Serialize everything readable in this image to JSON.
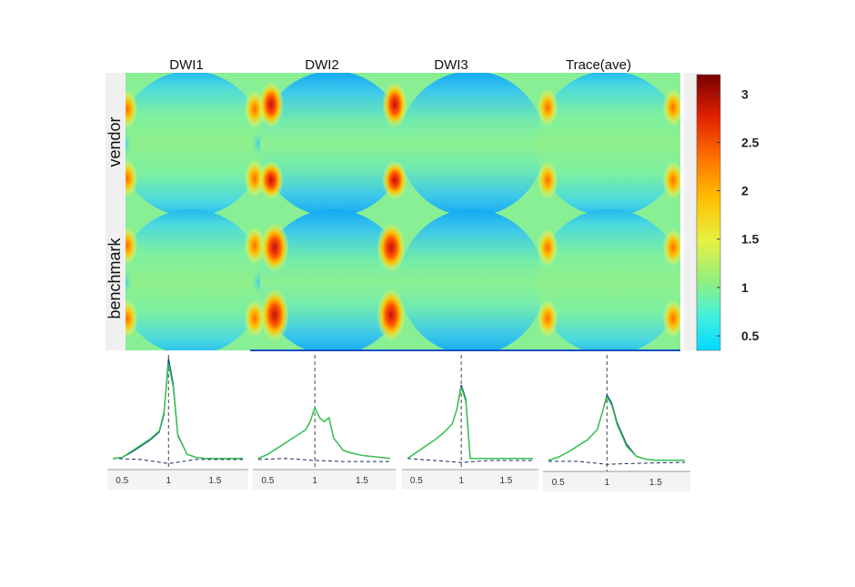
{
  "chart_data": {
    "type": "heatmap",
    "columns": [
      "DWI1",
      "DWI2",
      "DWI3",
      "Trace(ave)"
    ],
    "rows": [
      "vendor",
      "benchmark"
    ],
    "colorbar": {
      "range": [
        0.35,
        3.2
      ],
      "ticks": [
        {
          "value": 3,
          "label": "3"
        },
        {
          "value": 2.5,
          "label": "2.5"
        },
        {
          "value": 2,
          "label": "2"
        },
        {
          "value": 1.5,
          "label": "1.5"
        },
        {
          "value": 1,
          "label": "1"
        },
        {
          "value": 0.5,
          "label": "0.5"
        }
      ],
      "colormap": "jet"
    },
    "histograms": {
      "type": "line",
      "xlim": [
        0.4,
        1.8
      ],
      "x_ticks": [
        {
          "value": 0.5,
          "label": "0.5"
        },
        {
          "value": 1,
          "label": "1"
        },
        {
          "value": 1.5,
          "label": "1.5"
        }
      ],
      "reference_x": 1,
      "series_colors": {
        "vendor": "#1a3fa0",
        "benchmark": "#2ecc40",
        "difference": "#1a2a5a"
      },
      "panels": [
        {
          "name": "DWI1",
          "vendor": {
            "x": [
              0.4,
              0.5,
              0.6,
              0.7,
              0.8,
              0.9,
              0.95,
              1.0,
              1.05,
              1.1,
              1.2,
              1.3,
              1.4,
              1.5,
              1.6,
              1.7,
              1.8
            ],
            "y": [
              0.02,
              0.03,
              0.08,
              0.14,
              0.2,
              0.28,
              0.45,
              1.0,
              0.75,
              0.25,
              0.06,
              0.03,
              0.02,
              0.02,
              0.02,
              0.02,
              0.02
            ]
          },
          "benchmark": {
            "x": [
              0.4,
              0.5,
              0.6,
              0.7,
              0.8,
              0.9,
              0.95,
              1.0,
              1.05,
              1.1,
              1.2,
              1.3,
              1.4,
              1.5,
              1.6,
              1.7,
              1.8
            ],
            "y": [
              0.02,
              0.03,
              0.09,
              0.15,
              0.21,
              0.29,
              0.47,
              0.95,
              0.72,
              0.24,
              0.06,
              0.03,
              0.02,
              0.02,
              0.02,
              0.02,
              0.02
            ]
          },
          "difference": {
            "x": [
              0.4,
              0.7,
              1.0,
              1.3,
              1.8
            ],
            "y": [
              0.02,
              0.01,
              -0.03,
              0.01,
              0.01
            ]
          }
        },
        {
          "name": "DWI2",
          "vendor": {
            "x": [
              0.4,
              0.5,
              0.6,
              0.7,
              0.8,
              0.9,
              0.95,
              1.0,
              1.05,
              1.1,
              1.15,
              1.2,
              1.3,
              1.4,
              1.5,
              1.6,
              1.7,
              1.8
            ],
            "y": [
              0.02,
              0.06,
              0.12,
              0.18,
              0.24,
              0.3,
              0.38,
              0.52,
              0.42,
              0.38,
              0.42,
              0.22,
              0.1,
              0.07,
              0.05,
              0.04,
              0.03,
              0.02
            ]
          },
          "benchmark": {
            "x": [
              0.4,
              0.5,
              0.6,
              0.7,
              0.8,
              0.9,
              0.95,
              1.0,
              1.05,
              1.1,
              1.15,
              1.2,
              1.3,
              1.4,
              1.5,
              1.6,
              1.7,
              1.8
            ],
            "y": [
              0.02,
              0.06,
              0.12,
              0.18,
              0.24,
              0.3,
              0.38,
              0.52,
              0.42,
              0.38,
              0.42,
              0.22,
              0.1,
              0.07,
              0.05,
              0.04,
              0.03,
              0.02
            ]
          },
          "difference": {
            "x": [
              0.4,
              0.7,
              1.0,
              1.3,
              1.8
            ],
            "y": [
              0.01,
              0.02,
              0.0,
              -0.01,
              -0.01
            ]
          }
        },
        {
          "name": "DWI3",
          "vendor": {
            "x": [
              0.4,
              0.5,
              0.6,
              0.7,
              0.8,
              0.9,
              0.95,
              1.0,
              1.05,
              1.1,
              1.15,
              1.2,
              1.4,
              1.6,
              1.8
            ],
            "y": [
              0.02,
              0.08,
              0.14,
              0.2,
              0.27,
              0.36,
              0.5,
              0.74,
              0.6,
              0.02,
              0.02,
              0.02,
              0.02,
              0.02,
              0.02
            ]
          },
          "benchmark": {
            "x": [
              0.4,
              0.5,
              0.6,
              0.7,
              0.8,
              0.9,
              0.95,
              1.0,
              1.05,
              1.1,
              1.15,
              1.2,
              1.4,
              1.6,
              1.8
            ],
            "y": [
              0.02,
              0.08,
              0.14,
              0.2,
              0.27,
              0.36,
              0.5,
              0.72,
              0.58,
              0.02,
              0.02,
              0.02,
              0.02,
              0.02,
              0.02
            ]
          },
          "difference": {
            "x": [
              0.4,
              0.7,
              1.0,
              1.3,
              1.8
            ],
            "y": [
              0.02,
              0.0,
              -0.02,
              0.0,
              0.0
            ]
          }
        },
        {
          "name": "Trace(ave)",
          "vendor": {
            "x": [
              0.4,
              0.5,
              0.6,
              0.7,
              0.8,
              0.9,
              0.95,
              1.0,
              1.05,
              1.1,
              1.2,
              1.3,
              1.4,
              1.5,
              1.6,
              1.7,
              1.8
            ],
            "y": [
              0.02,
              0.05,
              0.1,
              0.16,
              0.22,
              0.32,
              0.48,
              0.66,
              0.58,
              0.4,
              0.18,
              0.06,
              0.03,
              0.02,
              0.02,
              0.02,
              0.02
            ]
          },
          "benchmark": {
            "x": [
              0.4,
              0.5,
              0.6,
              0.7,
              0.8,
              0.9,
              0.95,
              1.0,
              1.05,
              1.1,
              1.2,
              1.3,
              1.4,
              1.5,
              1.6,
              1.7,
              1.8
            ],
            "y": [
              0.02,
              0.05,
              0.1,
              0.16,
              0.22,
              0.32,
              0.48,
              0.64,
              0.56,
              0.38,
              0.16,
              0.06,
              0.03,
              0.02,
              0.02,
              0.02,
              0.02
            ]
          },
          "difference": {
            "x": [
              0.4,
              0.7,
              1.0,
              1.3,
              1.8
            ],
            "y": [
              0.01,
              0.01,
              -0.02,
              -0.01,
              0.0
            ]
          }
        }
      ]
    }
  }
}
